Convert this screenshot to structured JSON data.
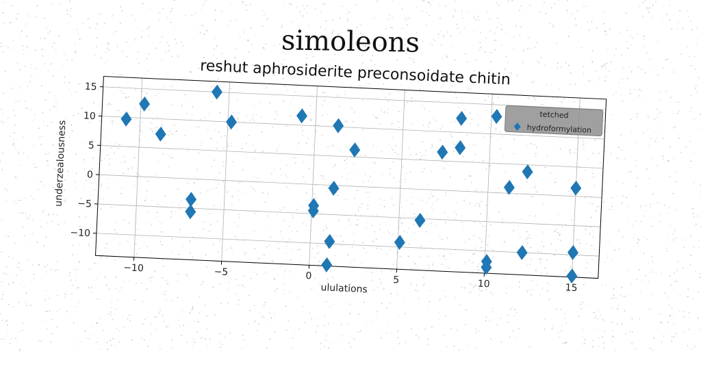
{
  "suptitle": "simoleons",
  "chart_data": {
    "type": "scatter",
    "title": "reshut aphrosiderite preconsoidate chitin",
    "xlabel": "ululations",
    "ylabel": "underzealousness",
    "xlim": [
      -12.2,
      16.5
    ],
    "ylim": [
      -13.8,
      16.8
    ],
    "xticks": [
      -10,
      -5,
      0,
      5,
      10,
      15
    ],
    "yticks": [
      -10,
      -5,
      0,
      5,
      10,
      15
    ],
    "xtick_labels": [
      "−10",
      "−5",
      "0",
      "5",
      "10",
      "15"
    ],
    "ytick_labels": [
      "−10",
      "−5",
      "0",
      "5",
      "10",
      "15"
    ],
    "grid": true,
    "legend": {
      "title": "tetched",
      "placement": "top-right"
    },
    "marker": "diamond",
    "color": "#1f77b4",
    "series": [
      {
        "name": "hydroformylation",
        "points": [
          [
            -10.8,
            9.7
          ],
          [
            -9.8,
            12.4
          ],
          [
            -8.8,
            7.4
          ],
          [
            -5.7,
            15.0
          ],
          [
            -4.8,
            10.0
          ],
          [
            -6.9,
            -3.5
          ],
          [
            -6.9,
            -5.6
          ],
          [
            -0.8,
            11.6
          ],
          [
            1.3,
            10.2
          ],
          [
            2.3,
            6.2
          ],
          [
            1.2,
            -0.5
          ],
          [
            0.1,
            -3.6
          ],
          [
            0.1,
            -4.5
          ],
          [
            1.1,
            -9.6
          ],
          [
            1.0,
            -13.6
          ],
          [
            5.1,
            -9.2
          ],
          [
            6.2,
            -5.3
          ],
          [
            7.3,
            6.5
          ],
          [
            8.3,
            12.4
          ],
          [
            8.3,
            7.4
          ],
          [
            10.3,
            13.0
          ],
          [
            11.2,
            1.0
          ],
          [
            12.2,
            3.8
          ],
          [
            10.1,
            -11.8
          ],
          [
            10.1,
            -12.8
          ],
          [
            12.1,
            -10.0
          ],
          [
            15.0,
            1.4
          ],
          [
            15.0,
            -9.6
          ],
          [
            15.0,
            -13.6
          ]
        ]
      }
    ]
  }
}
